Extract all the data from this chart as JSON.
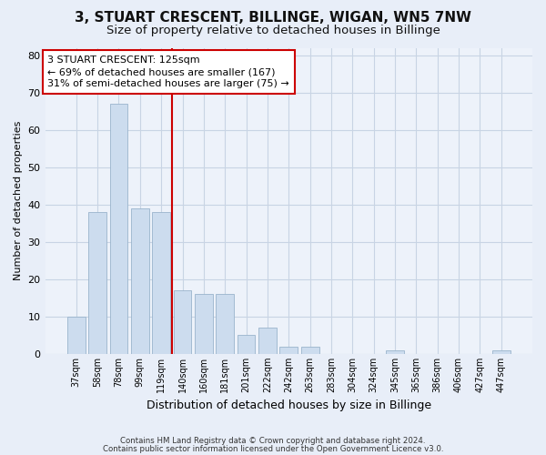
{
  "title1": "3, STUART CRESCENT, BILLINGE, WIGAN, WN5 7NW",
  "title2": "Size of property relative to detached houses in Billinge",
  "xlabel": "Distribution of detached houses by size in Billinge",
  "ylabel": "Number of detached properties",
  "categories": [
    "37sqm",
    "58sqm",
    "78sqm",
    "99sqm",
    "119sqm",
    "140sqm",
    "160sqm",
    "181sqm",
    "201sqm",
    "222sqm",
    "242sqm",
    "263sqm",
    "283sqm",
    "304sqm",
    "324sqm",
    "345sqm",
    "365sqm",
    "386sqm",
    "406sqm",
    "427sqm",
    "447sqm"
  ],
  "values": [
    10,
    38,
    67,
    39,
    38,
    17,
    16,
    16,
    5,
    7,
    2,
    2,
    0,
    0,
    0,
    1,
    0,
    0,
    0,
    0,
    1
  ],
  "bar_color": "#ccdcee",
  "bar_edge_color": "#9ab4cc",
  "vline_color": "#cc0000",
  "annotation_text": "3 STUART CRESCENT: 125sqm\n← 69% of detached houses are smaller (167)\n31% of semi-detached houses are larger (75) →",
  "annotation_box_color": "#ffffff",
  "annotation_box_edge_color": "#cc0000",
  "ylim": [
    0,
    82
  ],
  "yticks": [
    0,
    10,
    20,
    30,
    40,
    50,
    60,
    70,
    80
  ],
  "footer1": "Contains HM Land Registry data © Crown copyright and database right 2024.",
  "footer2": "Contains public sector information licensed under the Open Government Licence v3.0.",
  "bg_color": "#e8eef8",
  "plot_bg_color": "#edf2fa",
  "grid_color": "#c8d4e4",
  "title1_fontsize": 11,
  "title2_fontsize": 9.5,
  "ylabel_fontsize": 8,
  "xlabel_fontsize": 9
}
